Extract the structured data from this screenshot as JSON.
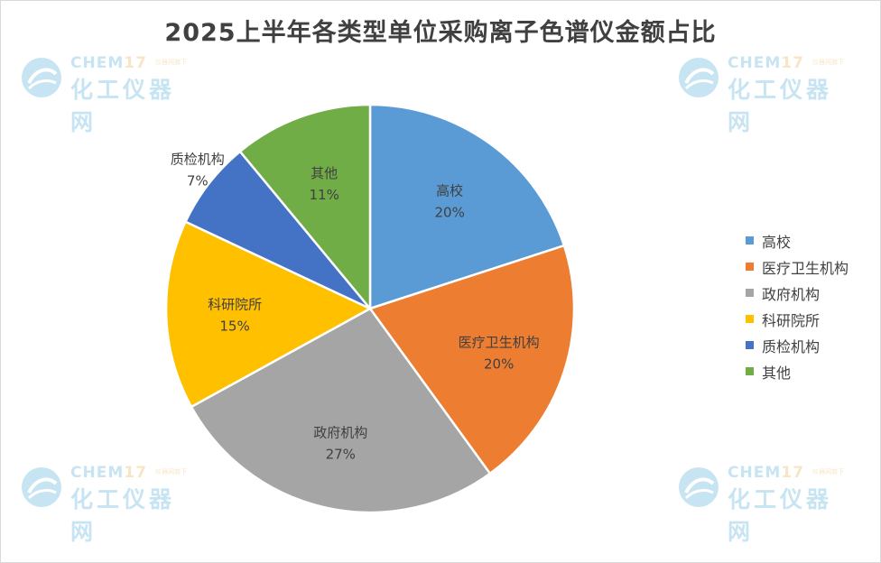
{
  "chart_data": {
    "type": "pie",
    "title": "2025上半年各类型单位采购离子色谱仪金额占比",
    "categories": [
      "高校",
      "医疗卫生机构",
      "政府机构",
      "科研院所",
      "质检机构",
      "其他"
    ],
    "values": [
      20,
      20,
      27,
      15,
      7,
      11
    ],
    "value_labels": [
      "20%",
      "20%",
      "27%",
      "15%",
      "7%",
      "11%"
    ],
    "colors": [
      "#5b9bd5",
      "#ed7d31",
      "#a5a5a5",
      "#ffc000",
      "#4472c4",
      "#70ad47"
    ],
    "start_angle": "12 o'clock, clockwise",
    "legend_position": "right"
  },
  "watermark": {
    "brand": "CHEM",
    "brand_number": "17",
    "tagline": "仪器网旗下",
    "name": "化工仪器网"
  }
}
